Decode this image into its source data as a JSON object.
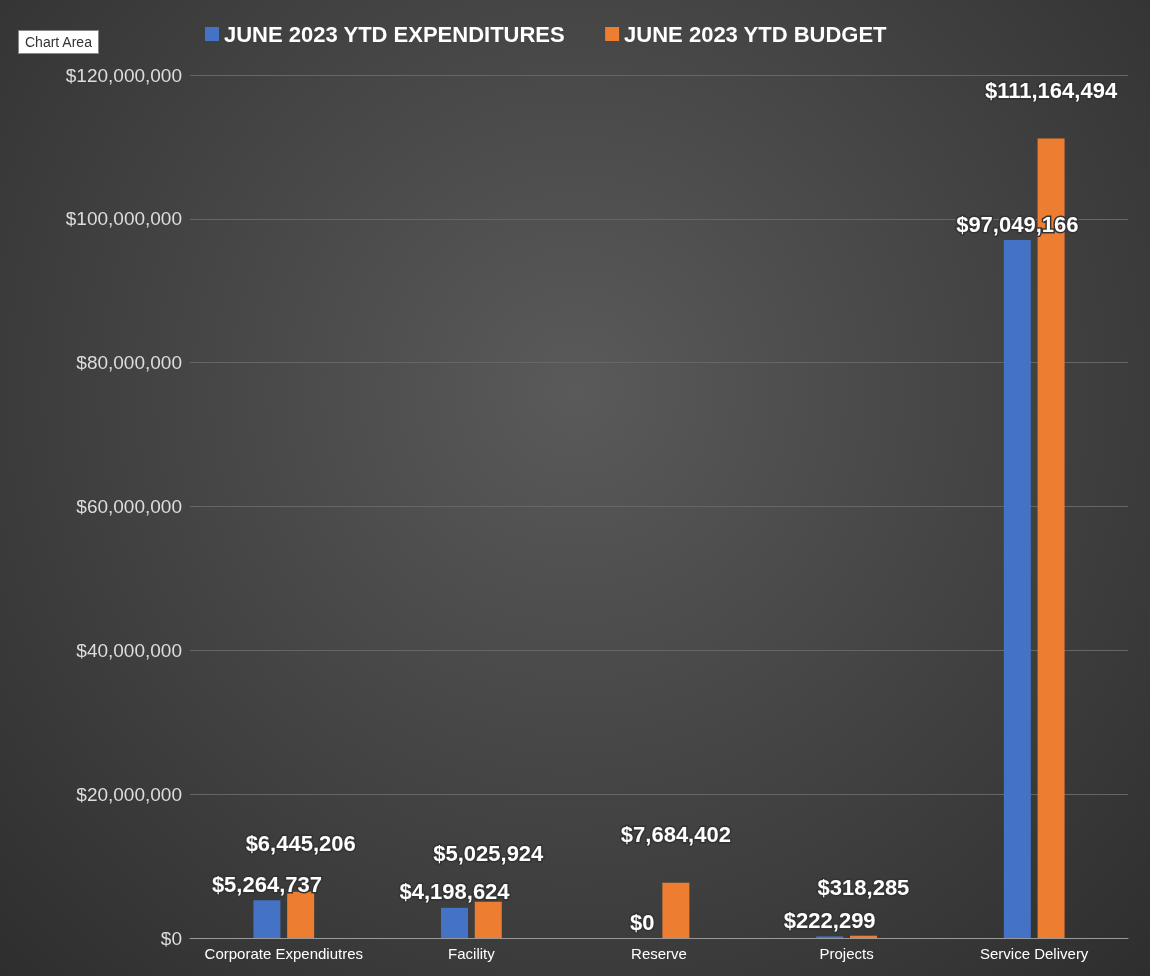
{
  "chart_data": {
    "type": "bar",
    "categories": [
      "Corporate Expendiutres",
      "Facility",
      "Reserve",
      "Projects",
      "Service Delivery"
    ],
    "series": [
      {
        "name": "JUNE 2023 YTD EXPENDITURES",
        "color": "#4472c4",
        "values": [
          5264737,
          4198624,
          0,
          222299,
          97049166
        ],
        "value_labels": [
          "$5,264,737",
          "$4,198,624",
          "$0",
          "$222,299",
          "$97,049,166"
        ]
      },
      {
        "name": "JUNE 2023 YTD BUDGET",
        "color": "#ed7d31",
        "values": [
          6445206,
          5025924,
          7684402,
          318285,
          111164494
        ],
        "value_labels": [
          "$6,445,206",
          "$5,025,924",
          "$7,684,402",
          "$318,285",
          "$111,164,494"
        ]
      }
    ],
    "ylim": [
      0,
      120000000
    ],
    "yticks": [
      {
        "value": 0,
        "label": "$0"
      },
      {
        "value": 20000000,
        "label": "$20,000,000"
      },
      {
        "value": 40000000,
        "label": "$40,000,000"
      },
      {
        "value": 60000000,
        "label": "$60,000,000"
      },
      {
        "value": 80000000,
        "label": "$80,000,000"
      },
      {
        "value": 100000000,
        "label": "$100,000,000"
      },
      {
        "value": 120000000,
        "label": "$120,000,000"
      }
    ],
    "grid": "y",
    "legend": "top",
    "annotations": [
      "Chart Area"
    ]
  }
}
